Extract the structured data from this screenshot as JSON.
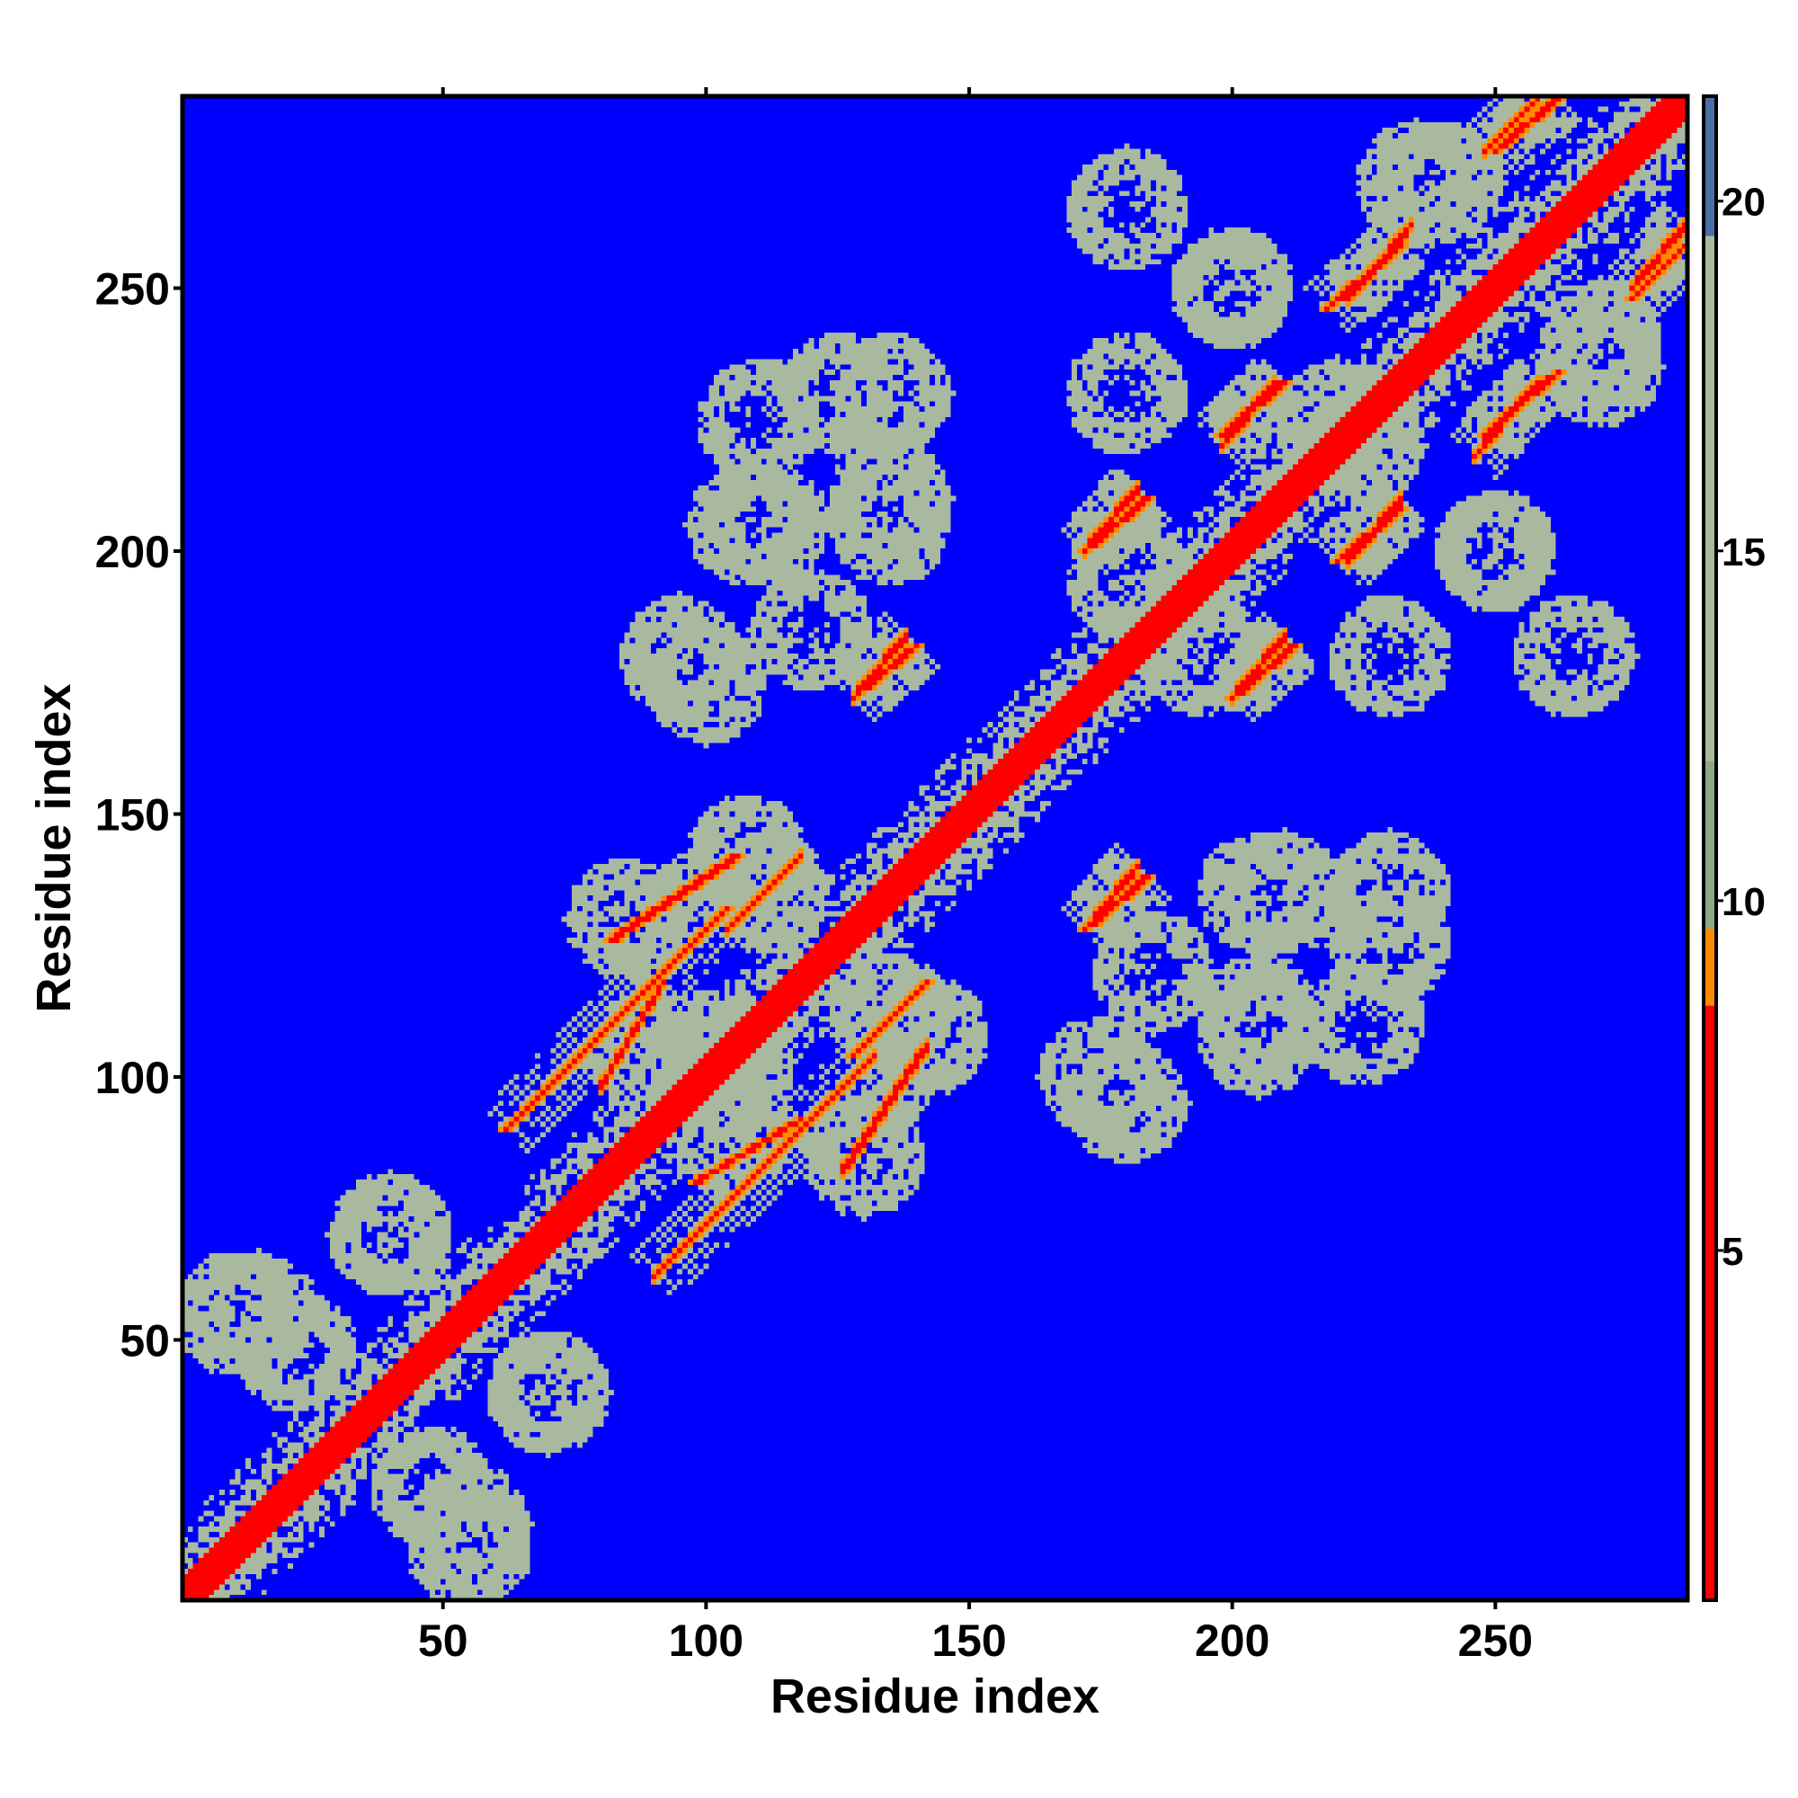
{
  "chart_data": {
    "type": "heatmap",
    "title": "",
    "xlabel": "Residue index",
    "ylabel": "Residue index",
    "xlim": [
      1,
      286
    ],
    "ylim": [
      1,
      286
    ],
    "xticks": [
      50,
      100,
      150,
      200,
      250
    ],
    "yticks": [
      50,
      100,
      150,
      200,
      250
    ],
    "colorbar": {
      "ticks": [
        5,
        10,
        15,
        20
      ],
      "range": [
        0,
        21.5
      ],
      "colors": [
        {
          "to": 8.5,
          "color": "#ff0000"
        },
        {
          "to": 9.6,
          "color": "#ff8c00"
        },
        {
          "to": 12.0,
          "color": "#8fa886"
        },
        {
          "to": 19.5,
          "color": "#a9b9a0"
        },
        {
          "to": 21.5,
          "color": "#4a6fa5"
        }
      ]
    },
    "background_value": 21.5,
    "diagonal_band_value": 2,
    "secondary_contact_segments": [
      {
        "x": [
          62,
          90
        ],
        "y": [
          90,
          118
        ],
        "value": 7
      },
      {
        "x": [
          76,
          104
        ],
        "y": [
          104,
          132
        ],
        "value": 7
      },
      {
        "x": [
          82,
          106
        ],
        "y": [
          126,
          142
        ],
        "value": 7
      },
      {
        "x": [
          98,
          118
        ],
        "y": [
          80,
          92
        ],
        "value": 7
      },
      {
        "x": [
          128,
          142
        ],
        "y": [
          104,
          118
        ],
        "value": 7
      },
      {
        "x": [
          130,
          140
        ],
        "y": [
          174,
          182
        ],
        "value": 7
      },
      {
        "x": [
          172,
          184
        ],
        "y": [
          128,
          138
        ],
        "value": 7
      },
      {
        "x": [
          172,
          184
        ],
        "y": [
          200,
          210
        ],
        "value": 7
      },
      {
        "x": [
          198,
          210
        ],
        "y": [
          222,
          232
        ],
        "value": 7
      },
      {
        "x": [
          218,
          232
        ],
        "y": [
          246,
          258
        ],
        "value": 7
      },
      {
        "x": [
          220,
          232
        ],
        "y": [
          198,
          208
        ],
        "value": 7
      },
      {
        "x": [
          200,
          212
        ],
        "y": [
          172,
          182
        ],
        "value": 7
      },
      {
        "x": [
          248,
          262
        ],
        "y": [
          222,
          234
        ],
        "value": 7
      },
      {
        "x": [
          250,
          262
        ],
        "y": [
          276,
          286
        ],
        "value": 7
      },
      {
        "x": [
          276,
          286
        ],
        "y": [
          248,
          258
        ],
        "value": 7
      }
    ],
    "contact_blobs": [
      {
        "x": 10,
        "y": 55,
        "value": 14
      },
      {
        "x": 48,
        "y": 22,
        "value": 14
      },
      {
        "x": 55,
        "y": 15,
        "value": 14
      },
      {
        "x": 40,
        "y": 70,
        "value": 14
      },
      {
        "x": 70,
        "y": 40,
        "value": 14
      },
      {
        "x": 85,
        "y": 130,
        "value": 14
      },
      {
        "x": 105,
        "y": 100,
        "value": 14
      },
      {
        "x": 108,
        "y": 142,
        "value": 14
      },
      {
        "x": 135,
        "y": 112,
        "value": 14
      },
      {
        "x": 95,
        "y": 180,
        "value": 14
      },
      {
        "x": 112,
        "y": 205,
        "value": 14
      },
      {
        "x": 135,
        "y": 205,
        "value": 14
      },
      {
        "x": 125,
        "y": 230,
        "value": 14
      },
      {
        "x": 110,
        "y": 225,
        "value": 14
      },
      {
        "x": 185,
        "y": 120,
        "value": 14
      },
      {
        "x": 175,
        "y": 100,
        "value": 14
      },
      {
        "x": 205,
        "y": 108,
        "value": 14
      },
      {
        "x": 210,
        "y": 135,
        "value": 14
      },
      {
        "x": 230,
        "y": 135,
        "value": 14
      },
      {
        "x": 180,
        "y": 195,
        "value": 14
      },
      {
        "x": 180,
        "y": 230,
        "value": 14
      },
      {
        "x": 200,
        "y": 250,
        "value": 14
      },
      {
        "x": 225,
        "y": 220,
        "value": 14
      },
      {
        "x": 250,
        "y": 200,
        "value": 14
      },
      {
        "x": 265,
        "y": 180,
        "value": 14
      },
      {
        "x": 240,
        "y": 270,
        "value": 14
      },
      {
        "x": 270,
        "y": 235,
        "value": 14
      }
    ]
  }
}
